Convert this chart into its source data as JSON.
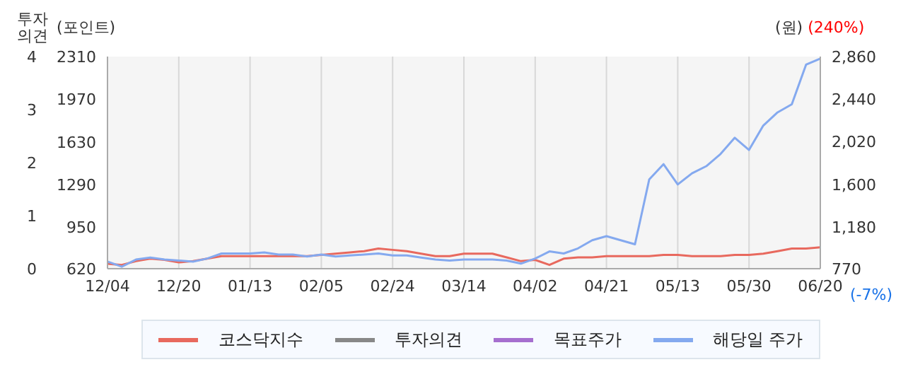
{
  "chart_data": {
    "type": "line",
    "ylabel": "(포인트)",
    "y2label": "(원)",
    "y3label": "투자\n의견",
    "categories": [
      "12/04",
      null,
      null,
      null,
      null,
      "12/20",
      null,
      null,
      null,
      null,
      "01/13",
      null,
      null,
      null,
      null,
      "02/05",
      null,
      null,
      null,
      null,
      "02/24",
      null,
      null,
      null,
      null,
      "03/14",
      null,
      null,
      null,
      null,
      "04/02",
      null,
      null,
      null,
      null,
      "04/21",
      null,
      null,
      null,
      null,
      "05/13",
      null,
      null,
      null,
      null,
      "05/30",
      null,
      null,
      null,
      null,
      "06/20"
    ],
    "series": [
      {
        "name": "코스닥지수",
        "color": "#e8695e",
        "axis": "y",
        "values": [
          660,
          650,
          680,
          700,
          690,
          670,
          680,
          700,
          720,
          720,
          720,
          720,
          720,
          720,
          720,
          730,
          740,
          750,
          760,
          780,
          770,
          760,
          740,
          720,
          720,
          740,
          740,
          740,
          710,
          680,
          690,
          650,
          700,
          710,
          710,
          720,
          720,
          720,
          720,
          730,
          730,
          720,
          720,
          720,
          730,
          730,
          740,
          760,
          780,
          780,
          790
        ]
      },
      {
        "name": "투자의견",
        "color": "#888888",
        "axis": "y3",
        "values": [
          null,
          null,
          null,
          null,
          null,
          null,
          null,
          null,
          null,
          null,
          null,
          null,
          null,
          null,
          null,
          null,
          null,
          null,
          null,
          null,
          null,
          null,
          null,
          null,
          null,
          null,
          null,
          null,
          null,
          null,
          null,
          null,
          null,
          null,
          null,
          null,
          null,
          null,
          null,
          null,
          null,
          null,
          null,
          null,
          null,
          null,
          null,
          null,
          null,
          null,
          null
        ]
      },
      {
        "name": "목표주가",
        "color": "#a66fcf",
        "axis": "y2",
        "values": [
          null,
          null,
          null,
          null,
          null,
          null,
          null,
          null,
          null,
          null,
          null,
          null,
          null,
          null,
          null,
          null,
          null,
          null,
          null,
          null,
          null,
          null,
          null,
          null,
          null,
          null,
          null,
          null,
          null,
          null,
          null,
          null,
          null,
          null,
          null,
          null,
          null,
          null,
          null,
          null,
          null,
          null,
          null,
          null,
          null,
          null,
          null,
          null,
          null,
          null,
          null
        ]
      },
      {
        "name": "해당일 주가",
        "color": "#84a9ef",
        "axis": "y2",
        "values": [
          840,
          790,
          860,
          880,
          860,
          850,
          840,
          870,
          920,
          920,
          920,
          930,
          910,
          910,
          890,
          910,
          890,
          900,
          910,
          920,
          900,
          900,
          880,
          860,
          850,
          860,
          860,
          860,
          850,
          820,
          870,
          940,
          920,
          970,
          1050,
          1090,
          1050,
          1010,
          1650,
          1800,
          1600,
          1710,
          1780,
          1900,
          2060,
          1940,
          2180,
          2310,
          2390,
          2780,
          2840
        ]
      }
    ],
    "ylim": [
      620,
      2310
    ],
    "yticks": [
      620,
      950,
      1290,
      1630,
      1970,
      2310
    ],
    "y2lim": [
      770,
      2860
    ],
    "y2ticks": [
      770,
      {
        "value": 1180,
        "label": "1,180"
      },
      {
        "value": 1600,
        "label": "1,600"
      },
      {
        "value": 2020,
        "label": "2,020"
      },
      {
        "value": 2440,
        "label": "2,440"
      },
      {
        "value": 2860,
        "label": "2,860"
      }
    ],
    "y3lim": [
      0,
      4
    ],
    "y3ticks": [
      0,
      1,
      2,
      3,
      4
    ],
    "annotations": [
      "(240%)",
      "(-7%)"
    ],
    "grid": "x",
    "legend": "bottom"
  }
}
